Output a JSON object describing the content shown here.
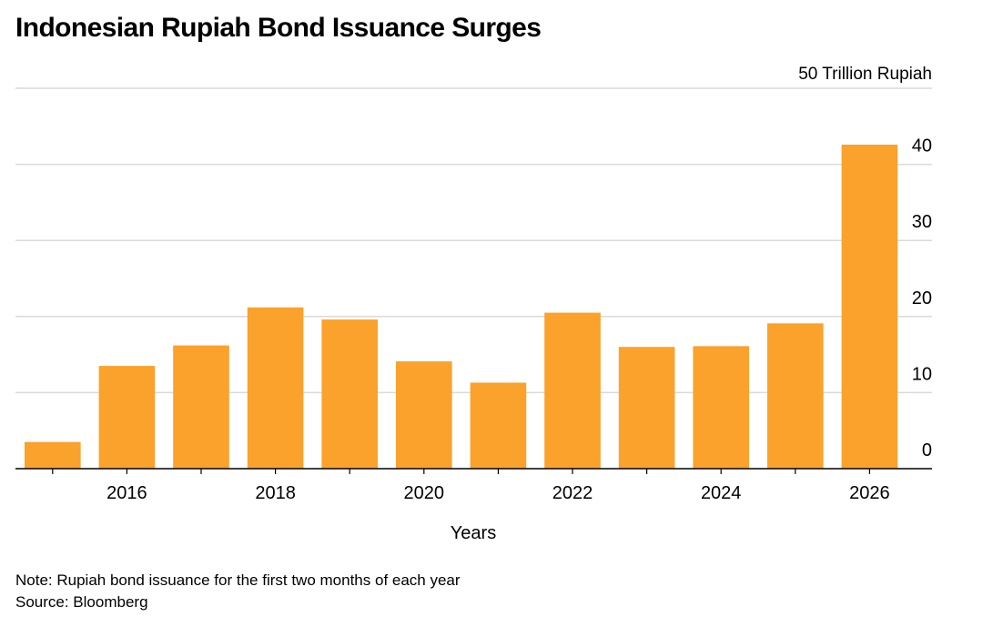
{
  "title": "Indonesian Rupiah Bond Issuance Surges",
  "note": "Note: Rupiah bond issuance for the first two months of each year",
  "source": "Source: Bloomberg",
  "colors": {
    "bar": "#FAA22B",
    "grid": "#DADADA",
    "axis": "#000000"
  },
  "chart_data": {
    "type": "bar",
    "title": "Indonesian Rupiah Bond Issuance Surges",
    "xlabel": "Years",
    "ylabel": "",
    "unit_label": "50 Trillion Rupiah",
    "categories": [
      "2015",
      "2016",
      "2017",
      "2018",
      "2019",
      "2020",
      "2021",
      "2022",
      "2023",
      "2024",
      "2025",
      "2026"
    ],
    "values": [
      3.5,
      13.5,
      16.2,
      21.2,
      19.6,
      14.1,
      11.3,
      20.5,
      16.0,
      16.1,
      19.1,
      42.6
    ],
    "x_tick_labels": [
      "2016",
      "2018",
      "2020",
      "2022",
      "2024",
      "2026"
    ],
    "y_ticks": [
      0,
      10,
      20,
      30,
      40
    ],
    "ylim": [
      0,
      50
    ],
    "grid": true,
    "y_axis_side": "right",
    "legend": "none"
  }
}
